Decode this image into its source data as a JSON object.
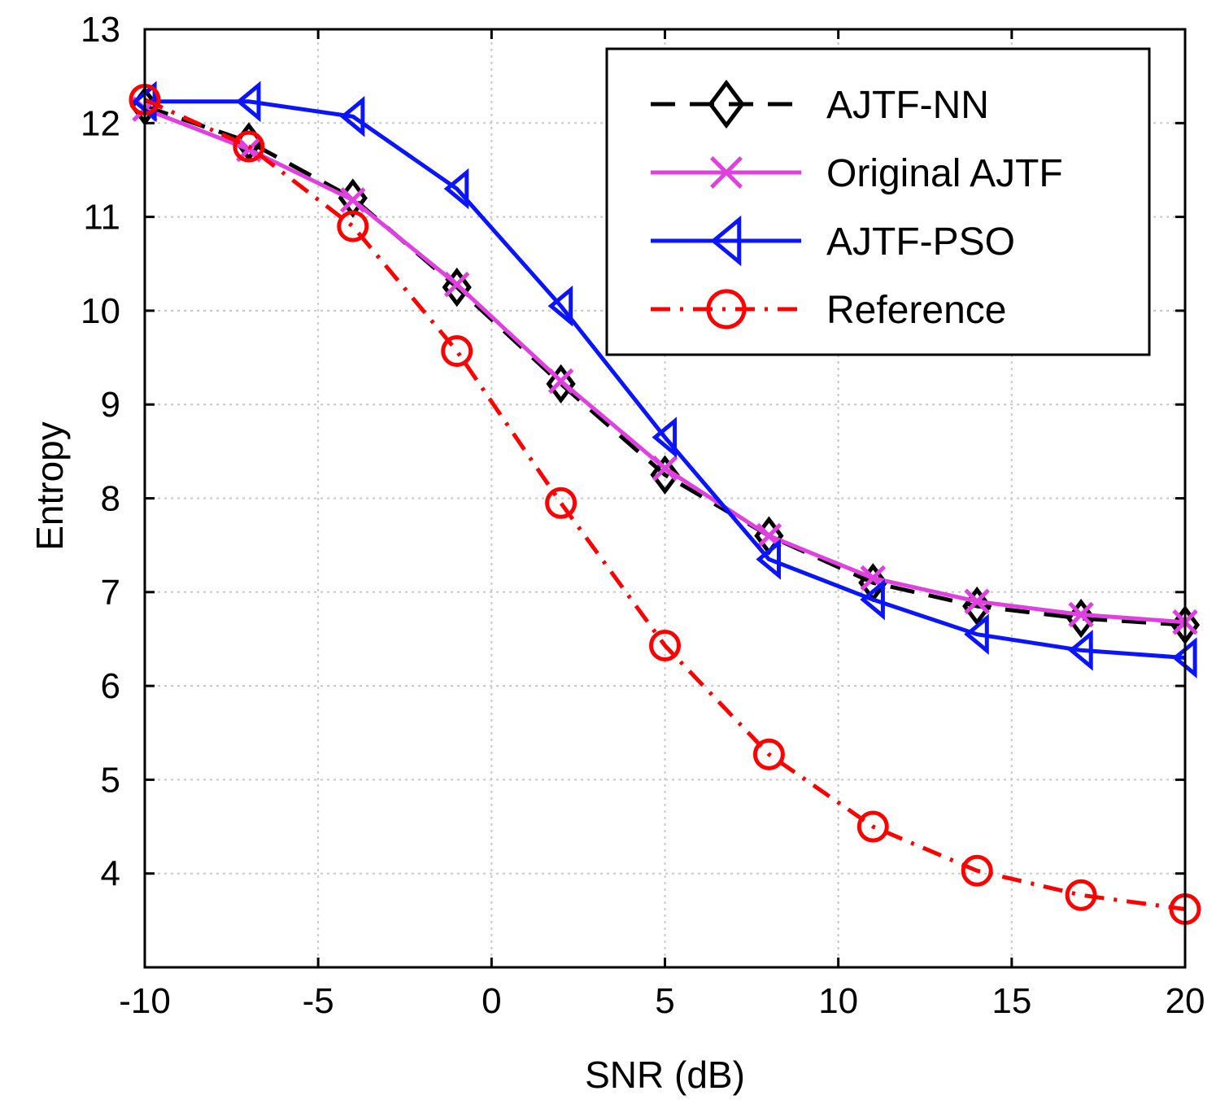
{
  "chart_data": {
    "type": "line",
    "title": "",
    "xlabel": "SNR (dB)",
    "ylabel": "Entropy",
    "xlim": [
      -10,
      20
    ],
    "ylim": [
      3,
      13
    ],
    "xticks": [
      -10,
      -5,
      0,
      5,
      10,
      15,
      20
    ],
    "yticks": [
      4,
      5,
      6,
      7,
      8,
      9,
      10,
      11,
      12,
      13
    ],
    "xtick_labels": [
      "-10",
      "-5",
      "0",
      "5",
      "10",
      "15",
      "20"
    ],
    "ytick_labels": [
      "4",
      "5",
      "6",
      "7",
      "8",
      "9",
      "10",
      "11",
      "12",
      "13"
    ],
    "grid": true,
    "legend_position": "top-right",
    "x": [
      -10,
      -7,
      -4,
      -1,
      2,
      5,
      8,
      11,
      14,
      17,
      20
    ],
    "series": [
      {
        "name": "AJTF-NN",
        "color": "#000000",
        "line_style": "dashed",
        "marker": "diamond",
        "values": [
          12.18,
          11.8,
          11.2,
          10.25,
          9.22,
          8.25,
          7.6,
          7.1,
          6.85,
          6.72,
          6.65
        ]
      },
      {
        "name": "Original AJTF",
        "color": "#e040e0",
        "line_style": "solid",
        "marker": "x",
        "values": [
          12.15,
          11.72,
          11.18,
          10.28,
          9.25,
          8.32,
          7.6,
          7.15,
          6.9,
          6.76,
          6.68
        ]
      },
      {
        "name": "AJTF-PSO",
        "color": "#0a14ff",
        "line_style": "solid",
        "marker": "triangle-left",
        "values": [
          12.23,
          12.23,
          12.07,
          11.3,
          10.05,
          8.65,
          7.35,
          6.92,
          6.55,
          6.38,
          6.3
        ]
      },
      {
        "name": "Reference",
        "color": "#ff0000",
        "line_style": "dashdot",
        "marker": "circle",
        "values": [
          12.25,
          11.75,
          10.9,
          9.57,
          7.95,
          6.43,
          5.27,
          4.5,
          4.03,
          3.77,
          3.62
        ]
      }
    ]
  }
}
